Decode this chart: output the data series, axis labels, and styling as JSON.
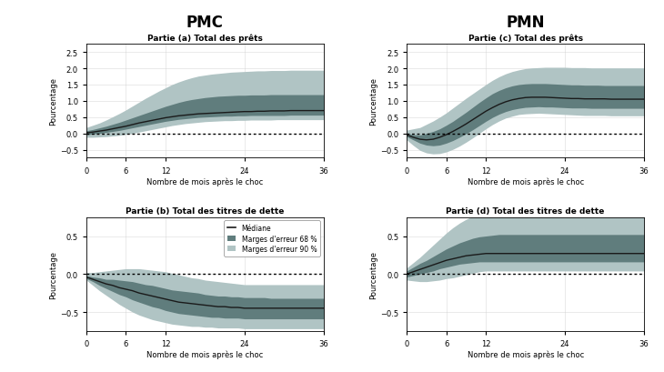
{
  "title_pmc": "PMC",
  "title_pmn": "PMN",
  "panel_a_title": "Partie (a) Total des prêts",
  "panel_b_title": "Partie (b) Total des titres de dette",
  "panel_c_title": "Partie (c) Total des prêts",
  "panel_d_title": "Partie (d) Total des titres de dette",
  "xlabel": "Nombre de mois après le choc",
  "ylabel": "Pourcentage",
  "x_ticks": [
    0,
    6,
    12,
    24,
    36
  ],
  "color_68": "#607d7d",
  "color_90": "#b0c4c4",
  "color_median": "#1a1a1a",
  "legend_median": "Médiane",
  "legend_68": "Marges d'erreur 68 %",
  "legend_90": "Marges d'erreur 90 %",
  "panel_ab_ylim": [
    -0.75,
    2.75
  ],
  "panel_ab_yticks": [
    -0.5,
    0,
    0.5,
    1.0,
    1.5,
    2.0,
    2.5
  ],
  "panel_b_ylim": [
    -0.75,
    0.75
  ],
  "panel_b_yticks": [
    -0.5,
    0,
    0.5
  ],
  "months": [
    0,
    1,
    2,
    3,
    4,
    5,
    6,
    7,
    8,
    9,
    10,
    11,
    12,
    13,
    14,
    15,
    16,
    17,
    18,
    19,
    20,
    21,
    22,
    23,
    24,
    25,
    26,
    27,
    28,
    29,
    30,
    31,
    32,
    33,
    34,
    35,
    36
  ],
  "pmc_loans_median": [
    0.02,
    0.04,
    0.07,
    0.1,
    0.14,
    0.18,
    0.22,
    0.27,
    0.32,
    0.36,
    0.4,
    0.44,
    0.48,
    0.51,
    0.54,
    0.56,
    0.58,
    0.6,
    0.61,
    0.62,
    0.63,
    0.64,
    0.65,
    0.66,
    0.67,
    0.67,
    0.68,
    0.68,
    0.69,
    0.69,
    0.69,
    0.7,
    0.7,
    0.7,
    0.7,
    0.7,
    0.7
  ],
  "pmc_loans_68_lo": [
    -0.04,
    -0.02,
    0.0,
    0.03,
    0.06,
    0.09,
    0.13,
    0.17,
    0.21,
    0.25,
    0.29,
    0.33,
    0.37,
    0.4,
    0.43,
    0.45,
    0.47,
    0.49,
    0.5,
    0.51,
    0.52,
    0.53,
    0.53,
    0.54,
    0.54,
    0.55,
    0.55,
    0.55,
    0.55,
    0.55,
    0.55,
    0.56,
    0.56,
    0.56,
    0.56,
    0.56,
    0.56
  ],
  "pmc_loans_68_hi": [
    0.08,
    0.12,
    0.17,
    0.22,
    0.28,
    0.34,
    0.41,
    0.48,
    0.55,
    0.62,
    0.69,
    0.76,
    0.83,
    0.89,
    0.95,
    1.0,
    1.04,
    1.07,
    1.1,
    1.12,
    1.14,
    1.15,
    1.16,
    1.17,
    1.17,
    1.18,
    1.18,
    1.18,
    1.19,
    1.19,
    1.19,
    1.19,
    1.19,
    1.19,
    1.19,
    1.19,
    1.19
  ],
  "pmc_loans_90_lo": [
    -0.12,
    -0.12,
    -0.11,
    -0.1,
    -0.08,
    -0.06,
    -0.03,
    0.0,
    0.04,
    0.08,
    0.12,
    0.16,
    0.2,
    0.24,
    0.27,
    0.3,
    0.32,
    0.34,
    0.36,
    0.37,
    0.38,
    0.39,
    0.39,
    0.4,
    0.4,
    0.41,
    0.41,
    0.41,
    0.41,
    0.42,
    0.42,
    0.42,
    0.42,
    0.42,
    0.42,
    0.42,
    0.42
  ],
  "pmc_loans_90_hi": [
    0.18,
    0.25,
    0.32,
    0.41,
    0.51,
    0.61,
    0.72,
    0.84,
    0.96,
    1.08,
    1.19,
    1.3,
    1.4,
    1.5,
    1.58,
    1.65,
    1.71,
    1.76,
    1.79,
    1.82,
    1.84,
    1.86,
    1.88,
    1.89,
    1.9,
    1.91,
    1.92,
    1.92,
    1.93,
    1.93,
    1.93,
    1.94,
    1.94,
    1.94,
    1.94,
    1.94,
    1.94
  ],
  "pmn_loans_median": [
    -0.05,
    -0.12,
    -0.18,
    -0.2,
    -0.18,
    -0.12,
    -0.04,
    0.06,
    0.17,
    0.29,
    0.42,
    0.55,
    0.68,
    0.79,
    0.89,
    0.97,
    1.03,
    1.07,
    1.1,
    1.11,
    1.11,
    1.11,
    1.1,
    1.09,
    1.08,
    1.07,
    1.07,
    1.06,
    1.06,
    1.06,
    1.06,
    1.05,
    1.05,
    1.05,
    1.05,
    1.05,
    1.05
  ],
  "pmn_loans_68_lo": [
    -0.1,
    -0.2,
    -0.3,
    -0.36,
    -0.38,
    -0.36,
    -0.3,
    -0.22,
    -0.12,
    -0.01,
    0.11,
    0.24,
    0.37,
    0.49,
    0.59,
    0.67,
    0.73,
    0.77,
    0.8,
    0.81,
    0.82,
    0.81,
    0.81,
    0.8,
    0.79,
    0.78,
    0.78,
    0.78,
    0.77,
    0.77,
    0.77,
    0.77,
    0.77,
    0.77,
    0.77,
    0.77,
    0.77
  ],
  "pmn_loans_68_hi": [
    0.01,
    -0.04,
    -0.05,
    0.0,
    0.06,
    0.14,
    0.25,
    0.37,
    0.51,
    0.65,
    0.8,
    0.95,
    1.09,
    1.22,
    1.32,
    1.4,
    1.46,
    1.5,
    1.52,
    1.53,
    1.53,
    1.53,
    1.52,
    1.51,
    1.5,
    1.49,
    1.49,
    1.48,
    1.48,
    1.48,
    1.47,
    1.47,
    1.47,
    1.47,
    1.47,
    1.47,
    1.47
  ],
  "pmn_loans_90_lo": [
    -0.2,
    -0.37,
    -0.52,
    -0.6,
    -0.63,
    -0.62,
    -0.57,
    -0.49,
    -0.39,
    -0.27,
    -0.14,
    0.0,
    0.14,
    0.27,
    0.38,
    0.47,
    0.53,
    0.58,
    0.6,
    0.61,
    0.62,
    0.61,
    0.6,
    0.59,
    0.58,
    0.57,
    0.56,
    0.55,
    0.55,
    0.55,
    0.55,
    0.54,
    0.54,
    0.54,
    0.54,
    0.54,
    0.54
  ],
  "pmn_loans_90_hi": [
    0.1,
    0.14,
    0.18,
    0.28,
    0.38,
    0.5,
    0.63,
    0.78,
    0.93,
    1.08,
    1.22,
    1.36,
    1.5,
    1.63,
    1.74,
    1.83,
    1.9,
    1.95,
    1.99,
    2.01,
    2.02,
    2.03,
    2.03,
    2.03,
    2.03,
    2.02,
    2.02,
    2.02,
    2.01,
    2.01,
    2.01,
    2.01,
    2.01,
    2.01,
    2.01,
    2.01,
    2.01
  ],
  "pmc_debt_median": [
    -0.04,
    -0.07,
    -0.1,
    -0.13,
    -0.15,
    -0.18,
    -0.2,
    -0.22,
    -0.25,
    -0.27,
    -0.29,
    -0.31,
    -0.33,
    -0.35,
    -0.37,
    -0.38,
    -0.39,
    -0.4,
    -0.41,
    -0.42,
    -0.43,
    -0.43,
    -0.44,
    -0.44,
    -0.45,
    -0.45,
    -0.45,
    -0.45,
    -0.45,
    -0.45,
    -0.45,
    -0.45,
    -0.45,
    -0.45,
    -0.45,
    -0.45,
    -0.45
  ],
  "pmc_debt_68_lo": [
    -0.06,
    -0.1,
    -0.15,
    -0.19,
    -0.23,
    -0.27,
    -0.3,
    -0.34,
    -0.37,
    -0.4,
    -0.43,
    -0.45,
    -0.48,
    -0.5,
    -0.52,
    -0.53,
    -0.54,
    -0.55,
    -0.56,
    -0.57,
    -0.57,
    -0.58,
    -0.58,
    -0.58,
    -0.59,
    -0.59,
    -0.59,
    -0.59,
    -0.59,
    -0.59,
    -0.59,
    -0.59,
    -0.59,
    -0.59,
    -0.59,
    -0.59,
    -0.59
  ],
  "pmc_debt_68_hi": [
    -0.02,
    -0.04,
    -0.05,
    -0.07,
    -0.07,
    -0.08,
    -0.09,
    -0.1,
    -0.12,
    -0.14,
    -0.15,
    -0.17,
    -0.19,
    -0.21,
    -0.22,
    -0.23,
    -0.24,
    -0.25,
    -0.27,
    -0.28,
    -0.29,
    -0.29,
    -0.3,
    -0.3,
    -0.31,
    -0.31,
    -0.31,
    -0.31,
    -0.32,
    -0.32,
    -0.32,
    -0.32,
    -0.32,
    -0.32,
    -0.32,
    -0.32,
    -0.32
  ],
  "pmc_debt_90_lo": [
    -0.08,
    -0.15,
    -0.22,
    -0.28,
    -0.34,
    -0.4,
    -0.45,
    -0.5,
    -0.54,
    -0.57,
    -0.6,
    -0.62,
    -0.64,
    -0.66,
    -0.67,
    -0.68,
    -0.69,
    -0.69,
    -0.7,
    -0.7,
    -0.71,
    -0.71,
    -0.71,
    -0.71,
    -0.72,
    -0.72,
    -0.72,
    -0.72,
    -0.72,
    -0.72,
    -0.72,
    -0.72,
    -0.72,
    -0.72,
    -0.72,
    -0.72,
    -0.72
  ],
  "pmc_debt_90_hi": [
    0.02,
    0.02,
    0.03,
    0.04,
    0.05,
    0.06,
    0.07,
    0.07,
    0.07,
    0.06,
    0.05,
    0.04,
    0.03,
    0.01,
    -0.01,
    -0.03,
    -0.05,
    -0.06,
    -0.08,
    -0.09,
    -0.1,
    -0.11,
    -0.12,
    -0.13,
    -0.14,
    -0.14,
    -0.14,
    -0.14,
    -0.14,
    -0.14,
    -0.14,
    -0.14,
    -0.14,
    -0.14,
    -0.14,
    -0.14,
    -0.14
  ],
  "pmn_debt_median": [
    0.0,
    0.03,
    0.06,
    0.09,
    0.12,
    0.15,
    0.18,
    0.2,
    0.22,
    0.24,
    0.25,
    0.26,
    0.27,
    0.27,
    0.27,
    0.27,
    0.27,
    0.27,
    0.27,
    0.27,
    0.27,
    0.27,
    0.27,
    0.27,
    0.27,
    0.27,
    0.27,
    0.27,
    0.27,
    0.27,
    0.27,
    0.27,
    0.27,
    0.27,
    0.27,
    0.27,
    0.27
  ],
  "pmn_debt_68_lo": [
    -0.04,
    -0.02,
    0.0,
    0.02,
    0.04,
    0.07,
    0.09,
    0.11,
    0.13,
    0.14,
    0.15,
    0.16,
    0.16,
    0.16,
    0.16,
    0.16,
    0.16,
    0.16,
    0.16,
    0.16,
    0.16,
    0.16,
    0.16,
    0.16,
    0.16,
    0.16,
    0.16,
    0.16,
    0.16,
    0.16,
    0.16,
    0.16,
    0.16,
    0.16,
    0.16,
    0.16,
    0.16
  ],
  "pmn_debt_68_hi": [
    0.04,
    0.09,
    0.14,
    0.18,
    0.23,
    0.28,
    0.33,
    0.37,
    0.41,
    0.44,
    0.47,
    0.49,
    0.5,
    0.51,
    0.52,
    0.52,
    0.52,
    0.52,
    0.52,
    0.52,
    0.52,
    0.52,
    0.52,
    0.52,
    0.52,
    0.52,
    0.52,
    0.52,
    0.52,
    0.52,
    0.52,
    0.52,
    0.52,
    0.52,
    0.52,
    0.52,
    0.52
  ],
  "pmn_debt_90_lo": [
    -0.08,
    -0.09,
    -0.1,
    -0.1,
    -0.09,
    -0.08,
    -0.06,
    -0.05,
    -0.03,
    -0.01,
    0.01,
    0.03,
    0.04,
    0.04,
    0.04,
    0.04,
    0.04,
    0.04,
    0.04,
    0.04,
    0.04,
    0.04,
    0.04,
    0.04,
    0.04,
    0.04,
    0.04,
    0.04,
    0.04,
    0.04,
    0.04,
    0.04,
    0.04,
    0.04,
    0.04,
    0.04,
    0.04
  ],
  "pmn_debt_90_hi": [
    0.08,
    0.15,
    0.22,
    0.3,
    0.38,
    0.46,
    0.54,
    0.61,
    0.67,
    0.72,
    0.76,
    0.79,
    0.81,
    0.82,
    0.83,
    0.83,
    0.83,
    0.83,
    0.83,
    0.83,
    0.83,
    0.83,
    0.83,
    0.83,
    0.83,
    0.83,
    0.83,
    0.83,
    0.83,
    0.83,
    0.83,
    0.83,
    0.83,
    0.83,
    0.83,
    0.83,
    0.83
  ]
}
